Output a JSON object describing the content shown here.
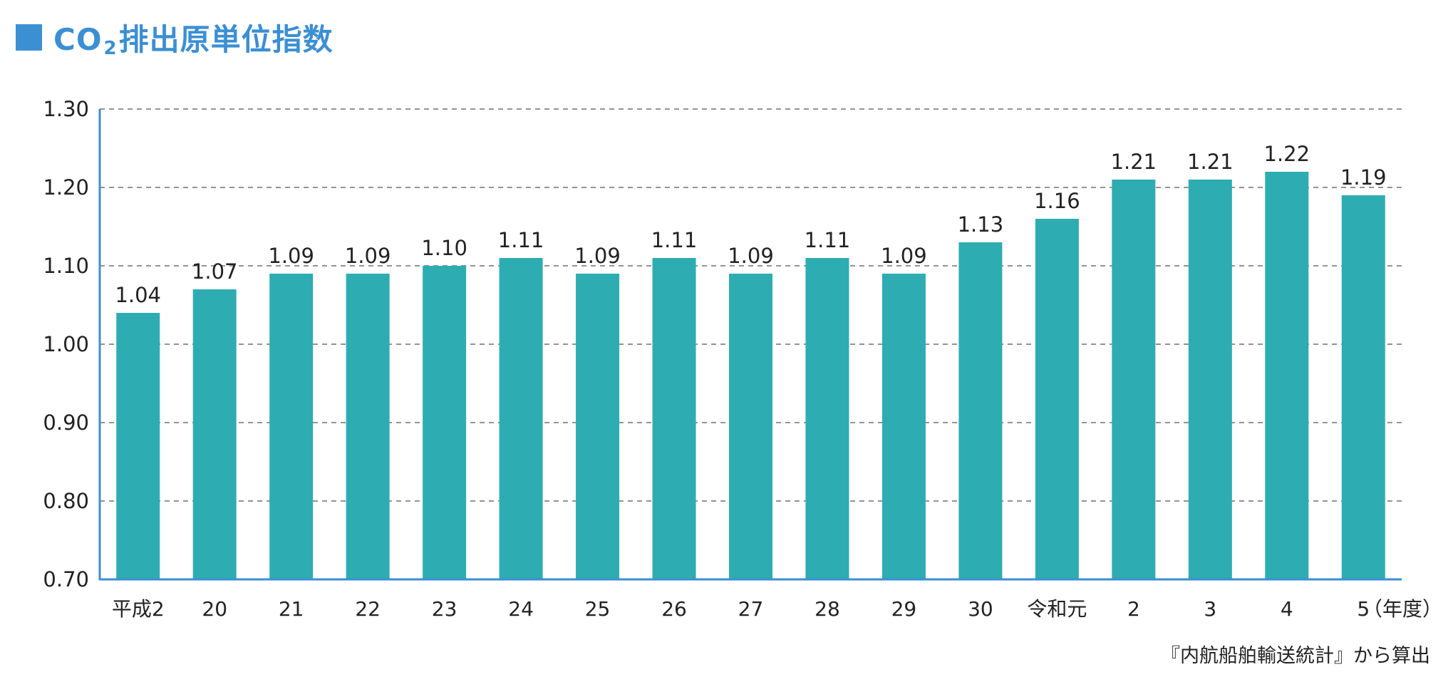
{
  "title": {
    "prefix": "CO",
    "subscript": "2",
    "suffix": "排出原単位指数"
  },
  "source": "『内航船舶輸送統計』から算出",
  "colors": {
    "accent": "#3b8fd3",
    "bar": "#2dadb2",
    "axis": "#3b8fd3",
    "grid": "#555555",
    "text": "#222222"
  },
  "chart_data": {
    "type": "bar",
    "title": "CO2排出原単位指数",
    "categories": [
      "平成2",
      "20",
      "21",
      "22",
      "23",
      "24",
      "25",
      "26",
      "27",
      "28",
      "29",
      "30",
      "令和元",
      "2",
      "3",
      "4",
      "5"
    ],
    "values": [
      1.04,
      1.07,
      1.09,
      1.09,
      1.1,
      1.11,
      1.09,
      1.11,
      1.09,
      1.11,
      1.09,
      1.13,
      1.16,
      1.21,
      1.21,
      1.22,
      1.19
    ],
    "value_labels": [
      "1.04",
      "1.07",
      "1.09",
      "1.09",
      "1.10",
      "1.11",
      "1.09",
      "1.11",
      "1.09",
      "1.11",
      "1.09",
      "1.13",
      "1.16",
      "1.21",
      "1.21",
      "1.22",
      "1.19"
    ],
    "xlabel": "（年度）",
    "ylabel": "",
    "ylim": [
      0.7,
      1.3
    ],
    "yticks": [
      "0.70",
      "0.80",
      "0.90",
      "1.00",
      "1.10",
      "1.20",
      "1.30"
    ],
    "grid": true,
    "legend": "none"
  }
}
